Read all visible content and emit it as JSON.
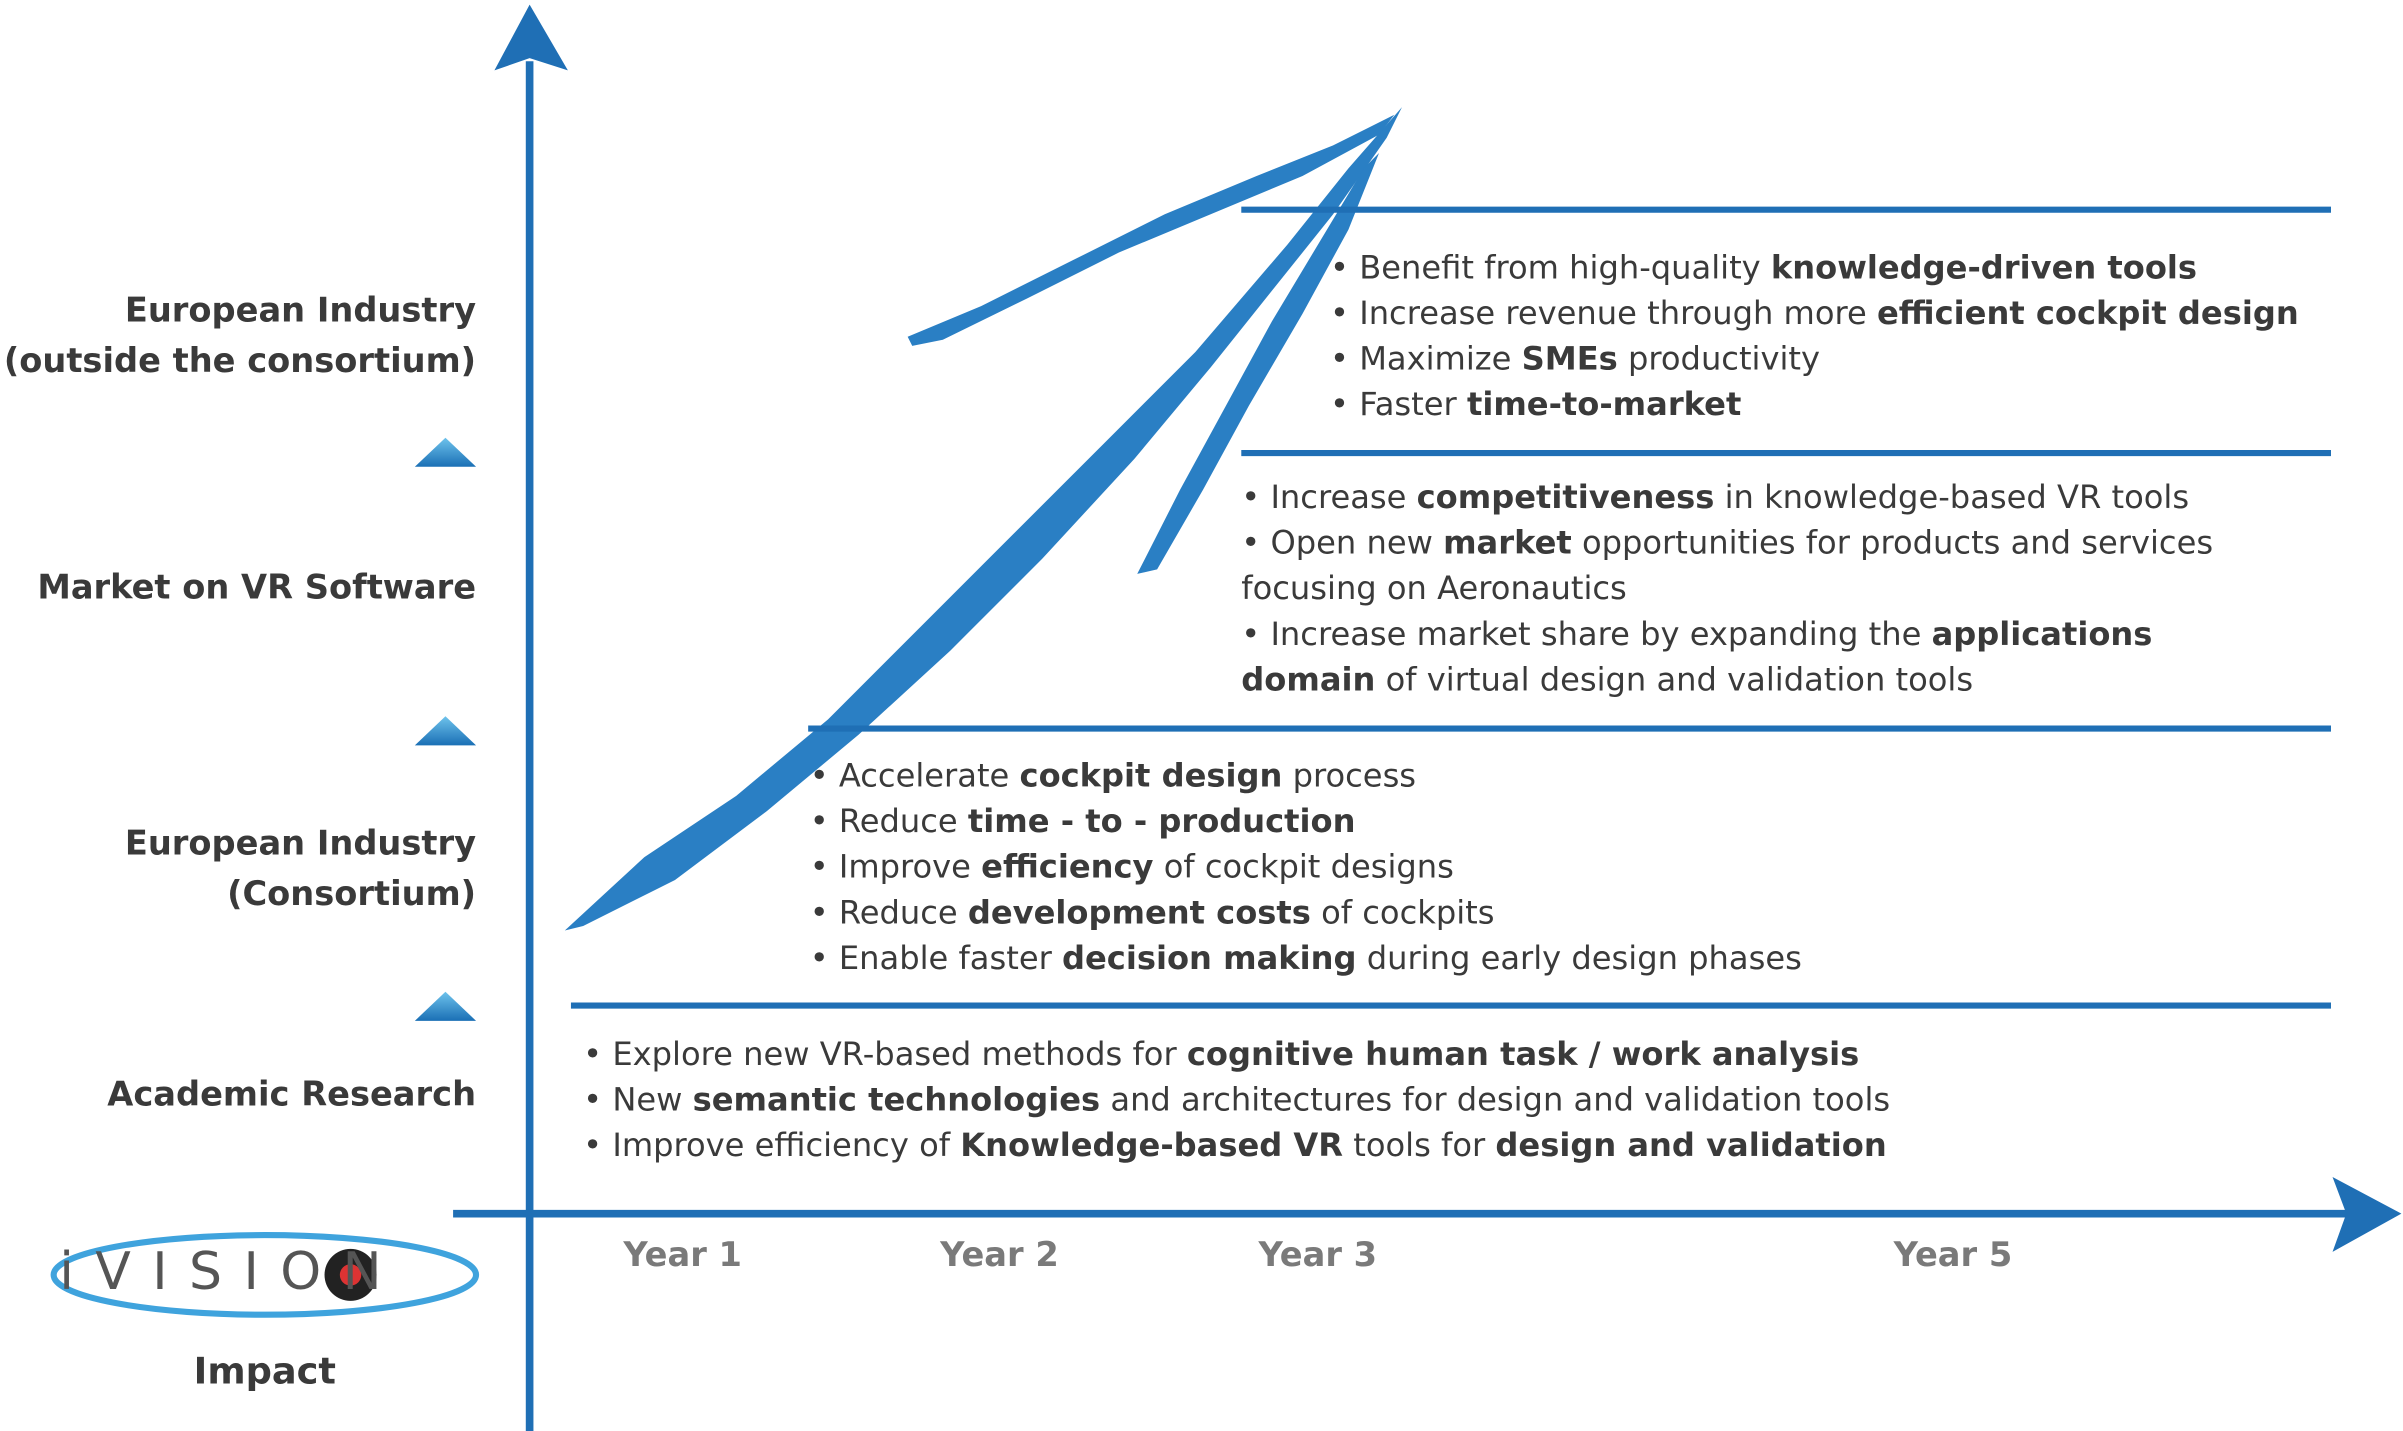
{
  "levels": [
    {
      "lines": [
        "European Industry",
        "(outside the consortium)"
      ]
    },
    {
      "lines": [
        "Market on VR Software"
      ]
    },
    {
      "lines": [
        "European Industry",
        "(Consortium)"
      ]
    },
    {
      "lines": [
        "Academic Research"
      ]
    }
  ],
  "x_labels": [
    "Year 1",
    "Year 2",
    "Year 3",
    "Year 5"
  ],
  "logo": "iVISION",
  "axis_label": "Impact",
  "boxes": [
    {
      "lines": [
        [
          "• Benefit from high-quality ",
          {
            "text": "knowledge-driven tools",
            "bold": true
          }
        ],
        [
          "• Increase revenue through more ",
          {
            "text": "efficient cockpit design",
            "bold": true
          }
        ],
        [
          "• Maximize ",
          {
            "text": "SMEs",
            "bold": true
          },
          " productivity"
        ],
        [
          "• Faster ",
          {
            "text": "time-to-market",
            "bold": true
          }
        ]
      ]
    },
    {
      "lines": [
        [
          "• Increase ",
          {
            "text": "competitiveness",
            "bold": true
          },
          " in knowledge-based VR tools"
        ],
        [
          "• Open new ",
          {
            "text": "market",
            "bold": true
          },
          " opportunities for products and services"
        ],
        [
          "focusing on Aeronautics"
        ],
        [
          "• Increase market share by expanding the ",
          {
            "text": "applications",
            "bold": true
          }
        ],
        [
          {
            "text": "domain",
            "bold": true
          },
          " of virtual design and validation tools"
        ]
      ]
    },
    {
      "lines": [
        [
          "• Accelerate ",
          {
            "text": "cockpit design",
            "bold": true
          },
          " process"
        ],
        [
          "• Reduce ",
          {
            "text": "time - to - production",
            "bold": true
          }
        ],
        [
          "• Improve ",
          {
            "text": "efficiency",
            "bold": true
          },
          " of cockpit designs"
        ],
        [
          "• Reduce ",
          {
            "text": "development costs",
            "bold": true
          },
          " of cockpits"
        ],
        [
          "• Enable faster ",
          {
            "text": "decision making",
            "bold": true
          },
          " during early design phases"
        ]
      ]
    },
    {
      "lines": [
        [
          "• Explore new VR-based methods for ",
          {
            "text": "cognitive human task / work analysis",
            "bold": true
          }
        ],
        [
          "• New ",
          {
            "text": "semantic technologies",
            "bold": true
          },
          " and architectures for design and validation tools"
        ],
        [
          "• Improve efficiency of ",
          {
            "text": "Knowledge-based VR",
            "bold": true
          },
          " tools for ",
          {
            "text": "design and validation",
            "bold": true
          }
        ]
      ]
    }
  ]
}
